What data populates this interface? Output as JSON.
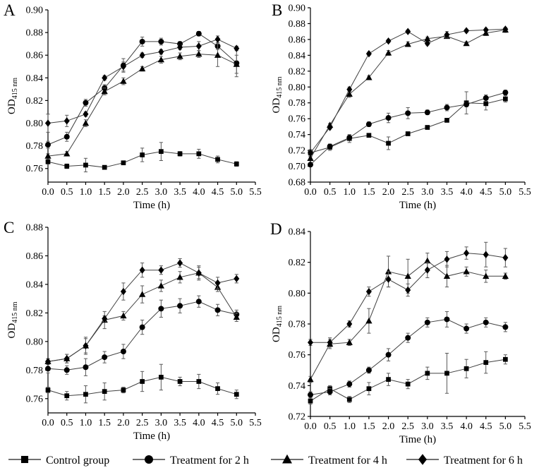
{
  "figure": {
    "xlabel": "Time (h)",
    "ylabel_main": "OD",
    "ylabel_sub": "415 nm",
    "legend_position": "bottom-horizontal",
    "legend": [
      {
        "marker": "square",
        "label": "Control group"
      },
      {
        "marker": "circle",
        "label": "Treatment for 2 h"
      },
      {
        "marker": "triangle",
        "label": "Treatment for 4 h"
      },
      {
        "marker": "diamond",
        "label": "Treatment for 6 h"
      }
    ],
    "colors": {
      "marker": "#000000",
      "line": "#404040",
      "errorbar": "#5a5a5a",
      "axis": "#000000"
    }
  },
  "chart_data": [
    {
      "type": "line",
      "panel": "A",
      "xlabel": "Time (h)",
      "ylabel": "OD 415 nm",
      "x": [
        0.0,
        0.5,
        1.0,
        1.5,
        2.0,
        2.5,
        3.0,
        3.5,
        4.0,
        4.5,
        5.0
      ],
      "xlim": [
        0.0,
        5.5
      ],
      "xticks": [
        0.0,
        0.5,
        1.0,
        1.5,
        2.0,
        2.5,
        3.0,
        3.5,
        4.0,
        4.5,
        5.0,
        5.5
      ],
      "ylim": [
        0.748,
        0.9
      ],
      "yticks": [
        0.76,
        0.78,
        0.8,
        0.82,
        0.84,
        0.86,
        0.88,
        0.9
      ],
      "grid": false,
      "series": [
        {
          "name": "Control group",
          "marker": "square",
          "values": [
            0.766,
            0.762,
            0.763,
            0.761,
            0.765,
            0.772,
            0.775,
            0.773,
            0.773,
            0.768,
            0.764
          ],
          "errors": [
            0.002,
            0.002,
            0.006,
            0.001,
            0.001,
            0.006,
            0.008,
            0.002,
            0.004,
            0.003,
            0.002
          ]
        },
        {
          "name": "Treatment for 2 h",
          "marker": "circle",
          "values": [
            0.781,
            0.788,
            0.818,
            0.831,
            0.851,
            0.872,
            0.872,
            0.87,
            0.879,
            0.868,
            0.853
          ],
          "errors": [
            0.003,
            0.004,
            0.003,
            0.003,
            0.006,
            0.004,
            0.003,
            0.002,
            0.002,
            0.003,
            0.012
          ]
        },
        {
          "name": "Treatment for 4 h",
          "marker": "triangle",
          "values": [
            0.771,
            0.773,
            0.8,
            0.828,
            0.837,
            0.848,
            0.856,
            0.859,
            0.861,
            0.86,
            0.852
          ],
          "errors": [
            0.002,
            0.002,
            0.003,
            0.003,
            0.003,
            0.002,
            0.003,
            0.003,
            0.003,
            0.01,
            0.008
          ]
        },
        {
          "name": "Treatment for 6 h",
          "marker": "diamond",
          "values": [
            0.8,
            0.802,
            0.808,
            0.84,
            0.85,
            0.86,
            0.863,
            0.867,
            0.868,
            0.874,
            0.866
          ],
          "errors": [
            0.008,
            0.005,
            0.002,
            0.002,
            0.004,
            0.002,
            0.002,
            0.002,
            0.004,
            0.003,
            0.002
          ]
        }
      ]
    },
    {
      "type": "line",
      "panel": "B",
      "xlabel": "Time (h)",
      "ylabel": "OD 415 nm",
      "x": [
        0.0,
        0.5,
        1.0,
        1.5,
        2.0,
        2.5,
        3.0,
        3.5,
        4.0,
        4.5,
        5.0
      ],
      "xlim": [
        0.0,
        5.5
      ],
      "xticks": [
        0.0,
        0.5,
        1.0,
        1.5,
        2.0,
        2.5,
        3.0,
        3.5,
        4.0,
        4.5,
        5.0,
        5.5
      ],
      "ylim": [
        0.68,
        0.9
      ],
      "yticks": [
        0.68,
        0.7,
        0.72,
        0.74,
        0.76,
        0.78,
        0.8,
        0.82,
        0.84,
        0.86,
        0.88,
        0.9
      ],
      "grid": false,
      "series": [
        {
          "name": "Control group",
          "marker": "square",
          "values": [
            0.717,
            0.724,
            0.735,
            0.739,
            0.729,
            0.741,
            0.749,
            0.758,
            0.78,
            0.779,
            0.785
          ],
          "errors": [
            0.004,
            0.004,
            0.005,
            0.002,
            0.008,
            0.002,
            0.002,
            0.002,
            0.014,
            0.008,
            0.004
          ]
        },
        {
          "name": "Treatment for 2 h",
          "marker": "circle",
          "values": [
            0.702,
            0.725,
            0.736,
            0.753,
            0.761,
            0.767,
            0.768,
            0.774,
            0.778,
            0.786,
            0.793
          ],
          "errors": [
            0.002,
            0.003,
            0.003,
            0.003,
            0.006,
            0.007,
            0.003,
            0.004,
            0.003,
            0.004,
            0.003
          ]
        },
        {
          "name": "Treatment for 4 h",
          "marker": "triangle",
          "values": [
            0.71,
            0.752,
            0.791,
            0.812,
            0.843,
            0.854,
            0.861,
            0.864,
            0.855,
            0.868,
            0.872
          ],
          "errors": [
            0.002,
            0.002,
            0.004,
            0.002,
            0.003,
            0.003,
            0.002,
            0.002,
            0.002,
            0.003,
            0.003
          ]
        },
        {
          "name": "Treatment for 6 h",
          "marker": "diamond",
          "values": [
            0.717,
            0.749,
            0.797,
            0.842,
            0.858,
            0.87,
            0.855,
            0.866,
            0.871,
            0.872,
            0.873
          ],
          "errors": [
            0.003,
            0.002,
            0.003,
            0.002,
            0.002,
            0.002,
            0.002,
            0.004,
            0.002,
            0.002,
            0.002
          ]
        }
      ]
    },
    {
      "type": "line",
      "panel": "C",
      "xlabel": "Time (h)",
      "ylabel": "OD 415 nm",
      "x": [
        0.0,
        0.5,
        1.0,
        1.5,
        2.0,
        2.5,
        3.0,
        3.5,
        4.0,
        4.5,
        5.0
      ],
      "xlim": [
        0.0,
        5.5
      ],
      "xticks": [
        0.0,
        0.5,
        1.0,
        1.5,
        2.0,
        2.5,
        3.0,
        3.5,
        4.0,
        4.5,
        5.0,
        5.5
      ],
      "ylim": [
        0.75,
        0.88
      ],
      "yticks": [
        0.76,
        0.78,
        0.8,
        0.82,
        0.84,
        0.86,
        0.88
      ],
      "grid": false,
      "series": [
        {
          "name": "Control group",
          "marker": "square",
          "values": [
            0.766,
            0.762,
            0.763,
            0.765,
            0.766,
            0.772,
            0.775,
            0.772,
            0.772,
            0.767,
            0.763
          ],
          "errors": [
            0.002,
            0.003,
            0.006,
            0.006,
            0.002,
            0.007,
            0.009,
            0.003,
            0.005,
            0.004,
            0.003
          ]
        },
        {
          "name": "Treatment for 2 h",
          "marker": "circle",
          "values": [
            0.781,
            0.78,
            0.782,
            0.789,
            0.793,
            0.81,
            0.823,
            0.825,
            0.828,
            0.822,
            0.819
          ],
          "errors": [
            0.003,
            0.003,
            0.006,
            0.004,
            0.005,
            0.005,
            0.006,
            0.005,
            0.004,
            0.004,
            0.003
          ]
        },
        {
          "name": "Treatment for 4 h",
          "marker": "triangle",
          "values": [
            0.786,
            0.788,
            0.797,
            0.815,
            0.818,
            0.833,
            0.839,
            0.845,
            0.848,
            0.838,
            0.817
          ],
          "errors": [
            0.002,
            0.003,
            0.006,
            0.006,
            0.003,
            0.006,
            0.004,
            0.004,
            0.004,
            0.003,
            0.003
          ]
        },
        {
          "name": "Treatment for 6 h",
          "marker": "diamond",
          "values": [
            0.786,
            0.788,
            0.797,
            0.816,
            0.835,
            0.85,
            0.85,
            0.855,
            0.848,
            0.841,
            0.844
          ],
          "errors": [
            0.002,
            0.003,
            0.005,
            0.002,
            0.006,
            0.005,
            0.003,
            0.003,
            0.005,
            0.004,
            0.003
          ]
        }
      ]
    },
    {
      "type": "line",
      "panel": "D",
      "xlabel": "Time (h)",
      "ylabel": "OD 415 nm",
      "x": [
        0.0,
        0.5,
        1.0,
        1.5,
        2.0,
        2.5,
        3.0,
        3.5,
        4.0,
        4.5,
        5.0
      ],
      "xlim": [
        0.0,
        5.5
      ],
      "xticks": [
        0.0,
        0.5,
        1.0,
        1.5,
        2.0,
        2.5,
        3.0,
        3.5,
        4.0,
        4.5,
        5.0,
        5.5
      ],
      "ylim": [
        0.72,
        0.84
      ],
      "yticks": [
        0.72,
        0.74,
        0.76,
        0.78,
        0.8,
        0.82,
        0.84
      ],
      "grid": false,
      "series": [
        {
          "name": "Control group",
          "marker": "square",
          "values": [
            0.73,
            0.738,
            0.731,
            0.738,
            0.744,
            0.741,
            0.748,
            0.748,
            0.751,
            0.755,
            0.757
          ],
          "errors": [
            0.002,
            0.002,
            0.002,
            0.004,
            0.004,
            0.003,
            0.004,
            0.013,
            0.006,
            0.007,
            0.003
          ]
        },
        {
          "name": "Treatment for 2 h",
          "marker": "circle",
          "values": [
            0.734,
            0.736,
            0.741,
            0.75,
            0.76,
            0.771,
            0.781,
            0.783,
            0.777,
            0.781,
            0.778
          ],
          "errors": [
            0.002,
            0.002,
            0.002,
            0.002,
            0.004,
            0.003,
            0.003,
            0.005,
            0.003,
            0.003,
            0.003
          ]
        },
        {
          "name": "Treatment for 4 h",
          "marker": "triangle",
          "values": [
            0.744,
            0.767,
            0.768,
            0.782,
            0.814,
            0.811,
            0.821,
            0.811,
            0.814,
            0.811,
            0.811
          ],
          "errors": [
            0.002,
            0.003,
            0.002,
            0.008,
            0.01,
            0.011,
            0.005,
            0.007,
            0.003,
            0.004,
            0.002
          ]
        },
        {
          "name": "Treatment for 6 h",
          "marker": "diamond",
          "values": [
            0.768,
            0.768,
            0.78,
            0.801,
            0.809,
            0.802,
            0.815,
            0.822,
            0.826,
            0.825,
            0.823
          ],
          "errors": [
            0.002,
            0.003,
            0.002,
            0.003,
            0.005,
            0.004,
            0.005,
            0.005,
            0.004,
            0.008,
            0.006
          ]
        }
      ]
    }
  ]
}
